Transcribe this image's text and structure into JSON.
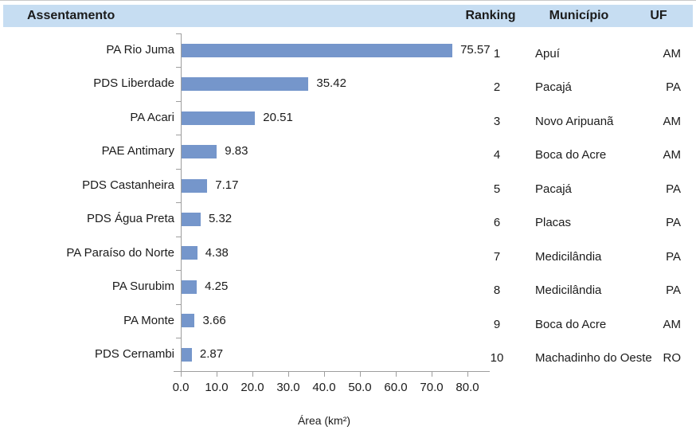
{
  "header": {
    "assentamento": "Assentamento",
    "ranking": "Ranking",
    "municipio": "Município",
    "uf": "UF"
  },
  "chart_data": {
    "type": "bar",
    "orientation": "horizontal",
    "title": "",
    "xlabel": "Área (km²)",
    "categories": [
      "PA Rio Juma",
      "PDS Liberdade",
      "PA Acari",
      "PAE Antimary",
      "PDS Castanheira",
      "PDS Água Preta",
      "PA Paraíso do Norte",
      "PA Surubim",
      "PA Monte",
      "PDS Cernambi"
    ],
    "values": [
      75.57,
      35.42,
      20.51,
      9.83,
      7.17,
      5.32,
      4.38,
      4.25,
      3.66,
      2.87
    ],
    "value_labels": [
      "75.57",
      "35.42",
      "20.51",
      "9.83",
      "7.17",
      "5.32",
      "4.38",
      "4.25",
      "3.66",
      "2.87"
    ],
    "xlim": [
      0,
      80
    ],
    "x_ticks": [
      "0.0",
      "10.0",
      "20.0",
      "30.0",
      "40.0",
      "50.0",
      "60.0",
      "70.0",
      "80.0"
    ],
    "grid": false,
    "legend": "none",
    "bar_color": "#7596CB"
  },
  "table": {
    "rows": [
      {
        "rank": "1",
        "municipio": "Apuí",
        "uf": "AM"
      },
      {
        "rank": "2",
        "municipio": "Pacajá",
        "uf": "PA"
      },
      {
        "rank": "3",
        "municipio": "Novo Aripuanã",
        "uf": "AM"
      },
      {
        "rank": "4",
        "municipio": "Boca do Acre",
        "uf": "AM"
      },
      {
        "rank": "5",
        "municipio": "Pacajá",
        "uf": "PA"
      },
      {
        "rank": "6",
        "municipio": "Placas",
        "uf": "PA"
      },
      {
        "rank": "7",
        "municipio": "Medicilândia",
        "uf": "PA"
      },
      {
        "rank": "8",
        "municipio": "Medicilândia",
        "uf": "PA"
      },
      {
        "rank": "9",
        "municipio": "Boca do Acre",
        "uf": "AM"
      },
      {
        "rank": "10",
        "municipio": "Machadinho do Oeste",
        "uf": "RO"
      }
    ]
  },
  "colors": {
    "header_bg": "#C6DDF2",
    "bar": "#7596CB",
    "axis": "#9E9E9E",
    "text": "#1B1B1B"
  }
}
